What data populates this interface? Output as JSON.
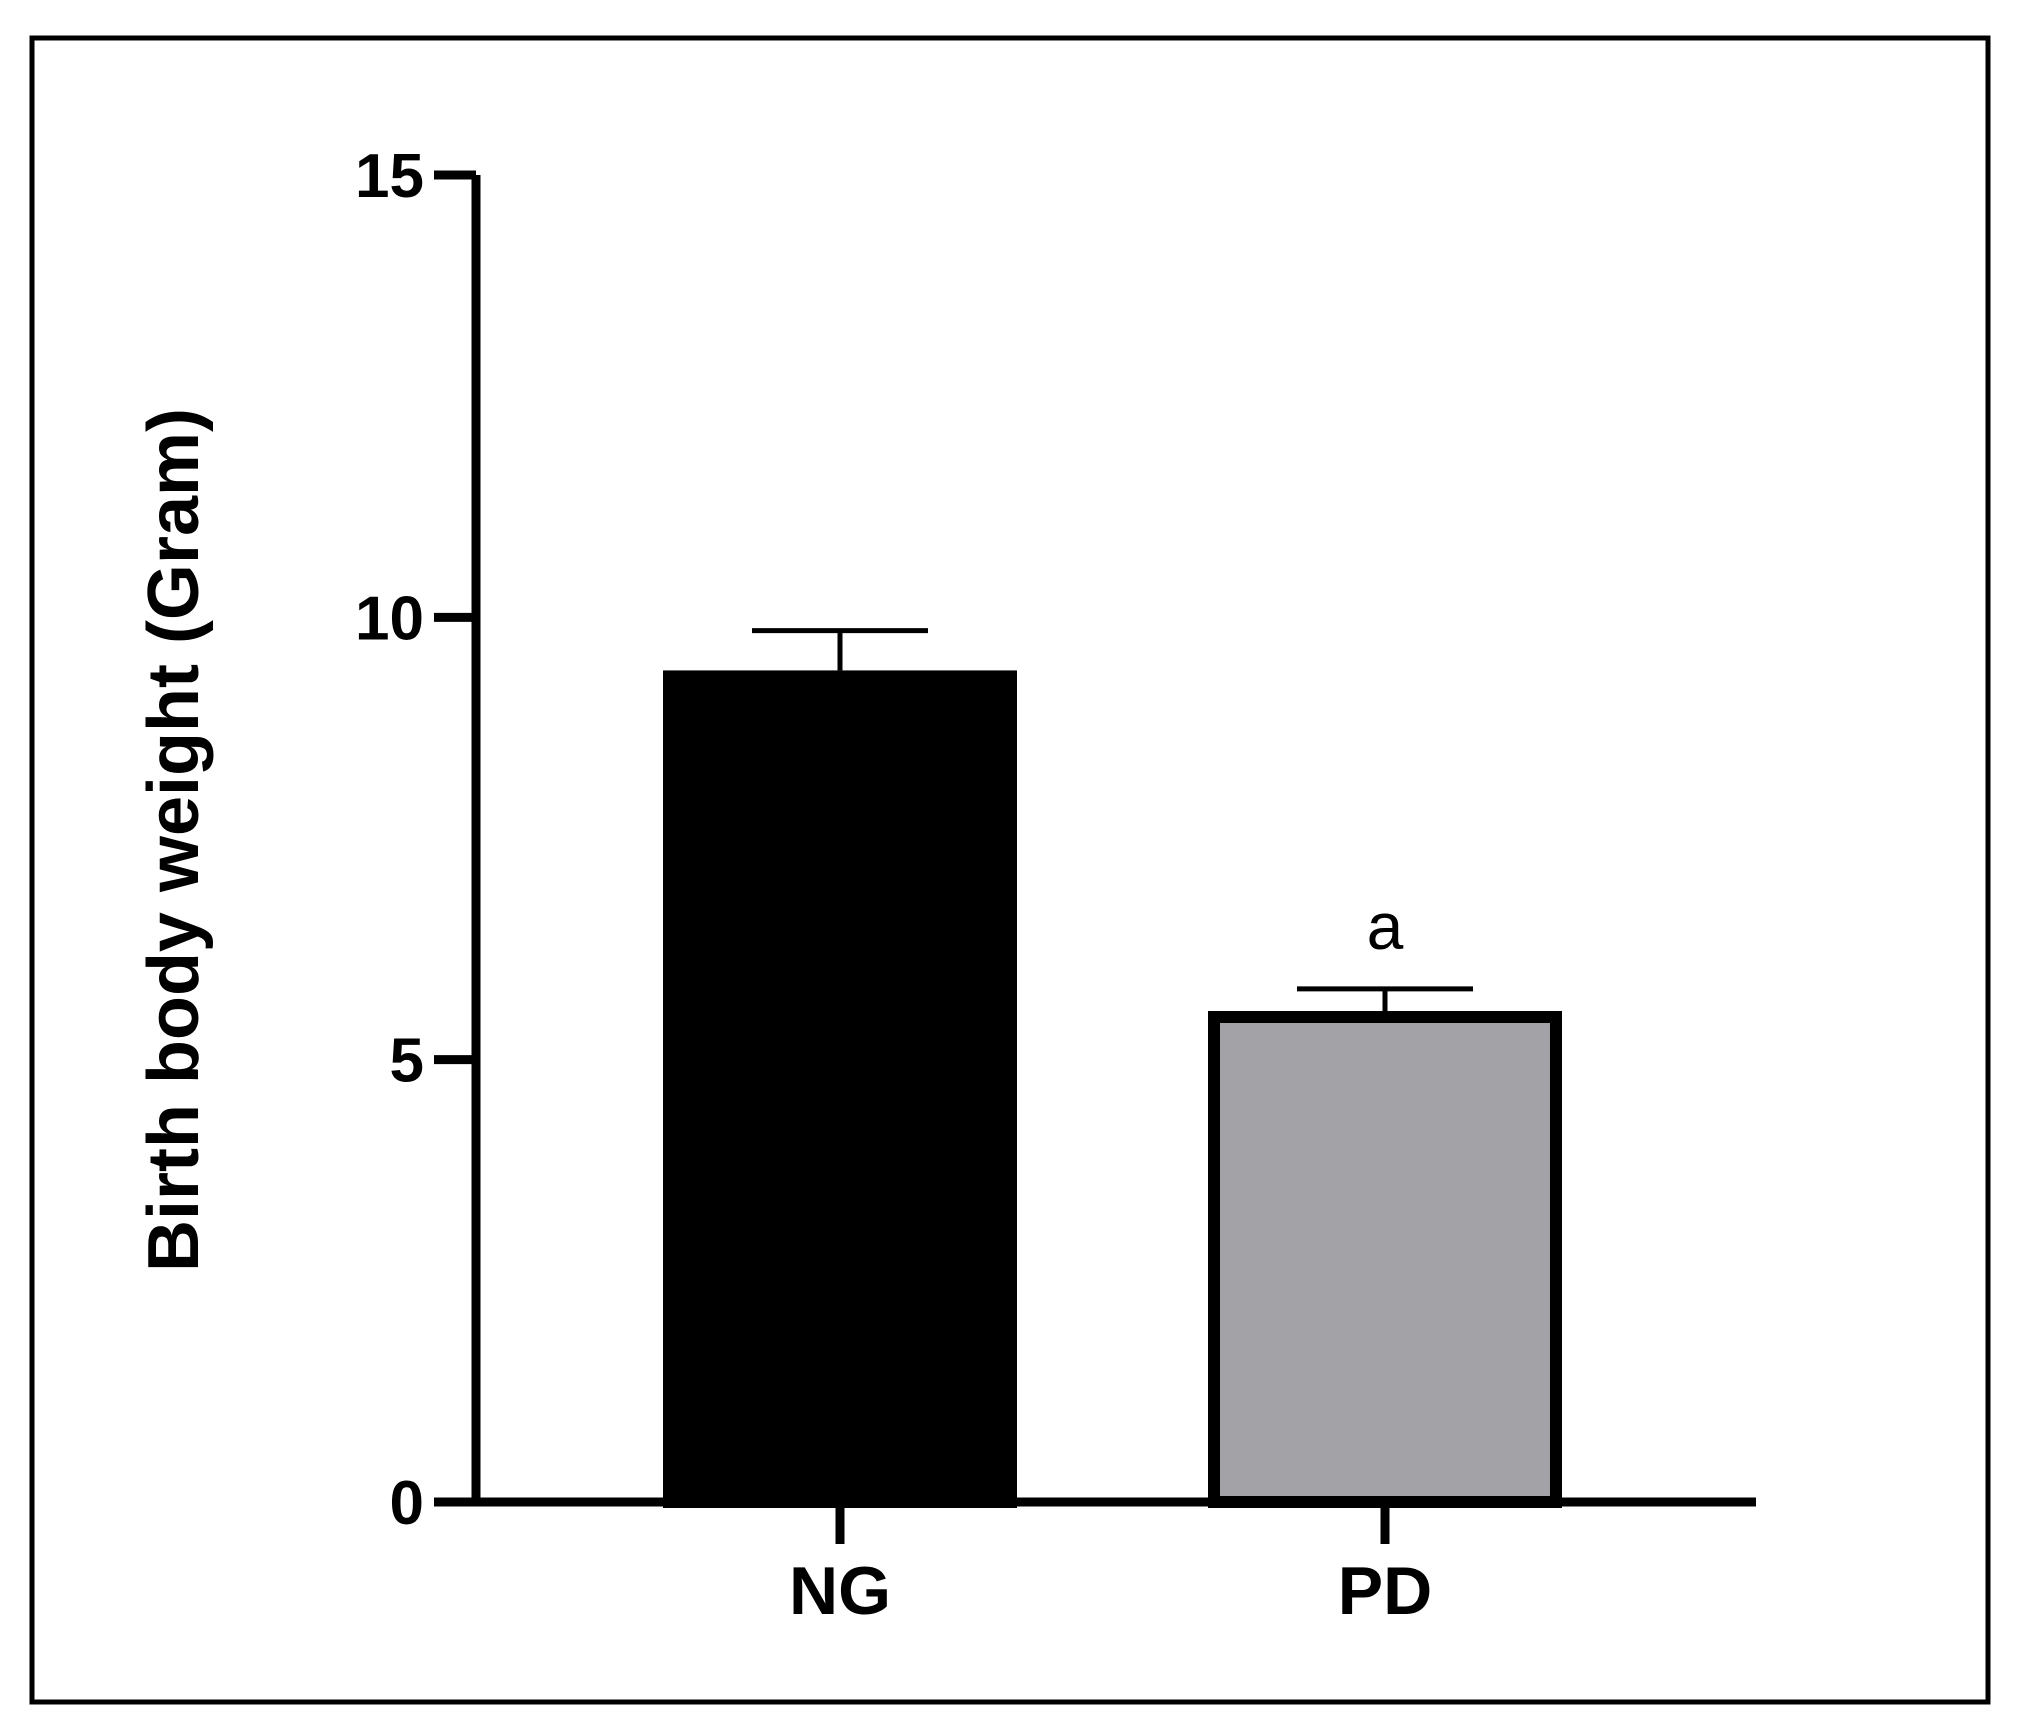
{
  "chart_data": {
    "type": "bar",
    "title": "",
    "xlabel": "",
    "ylabel": "Birth body weight (Gram)",
    "ylim": [
      0,
      15
    ],
    "yticks": [
      0,
      5,
      10,
      15
    ],
    "categories": [
      "NG",
      "PD"
    ],
    "values": [
      9.4,
      5.55
    ],
    "errors": [
      0.45,
      0.25
    ],
    "annotations": [
      "",
      "a"
    ],
    "colors": [
      "#000000",
      "#a3a2a7"
    ],
    "edge_color": "#000000",
    "grid": false,
    "legend": "none"
  }
}
